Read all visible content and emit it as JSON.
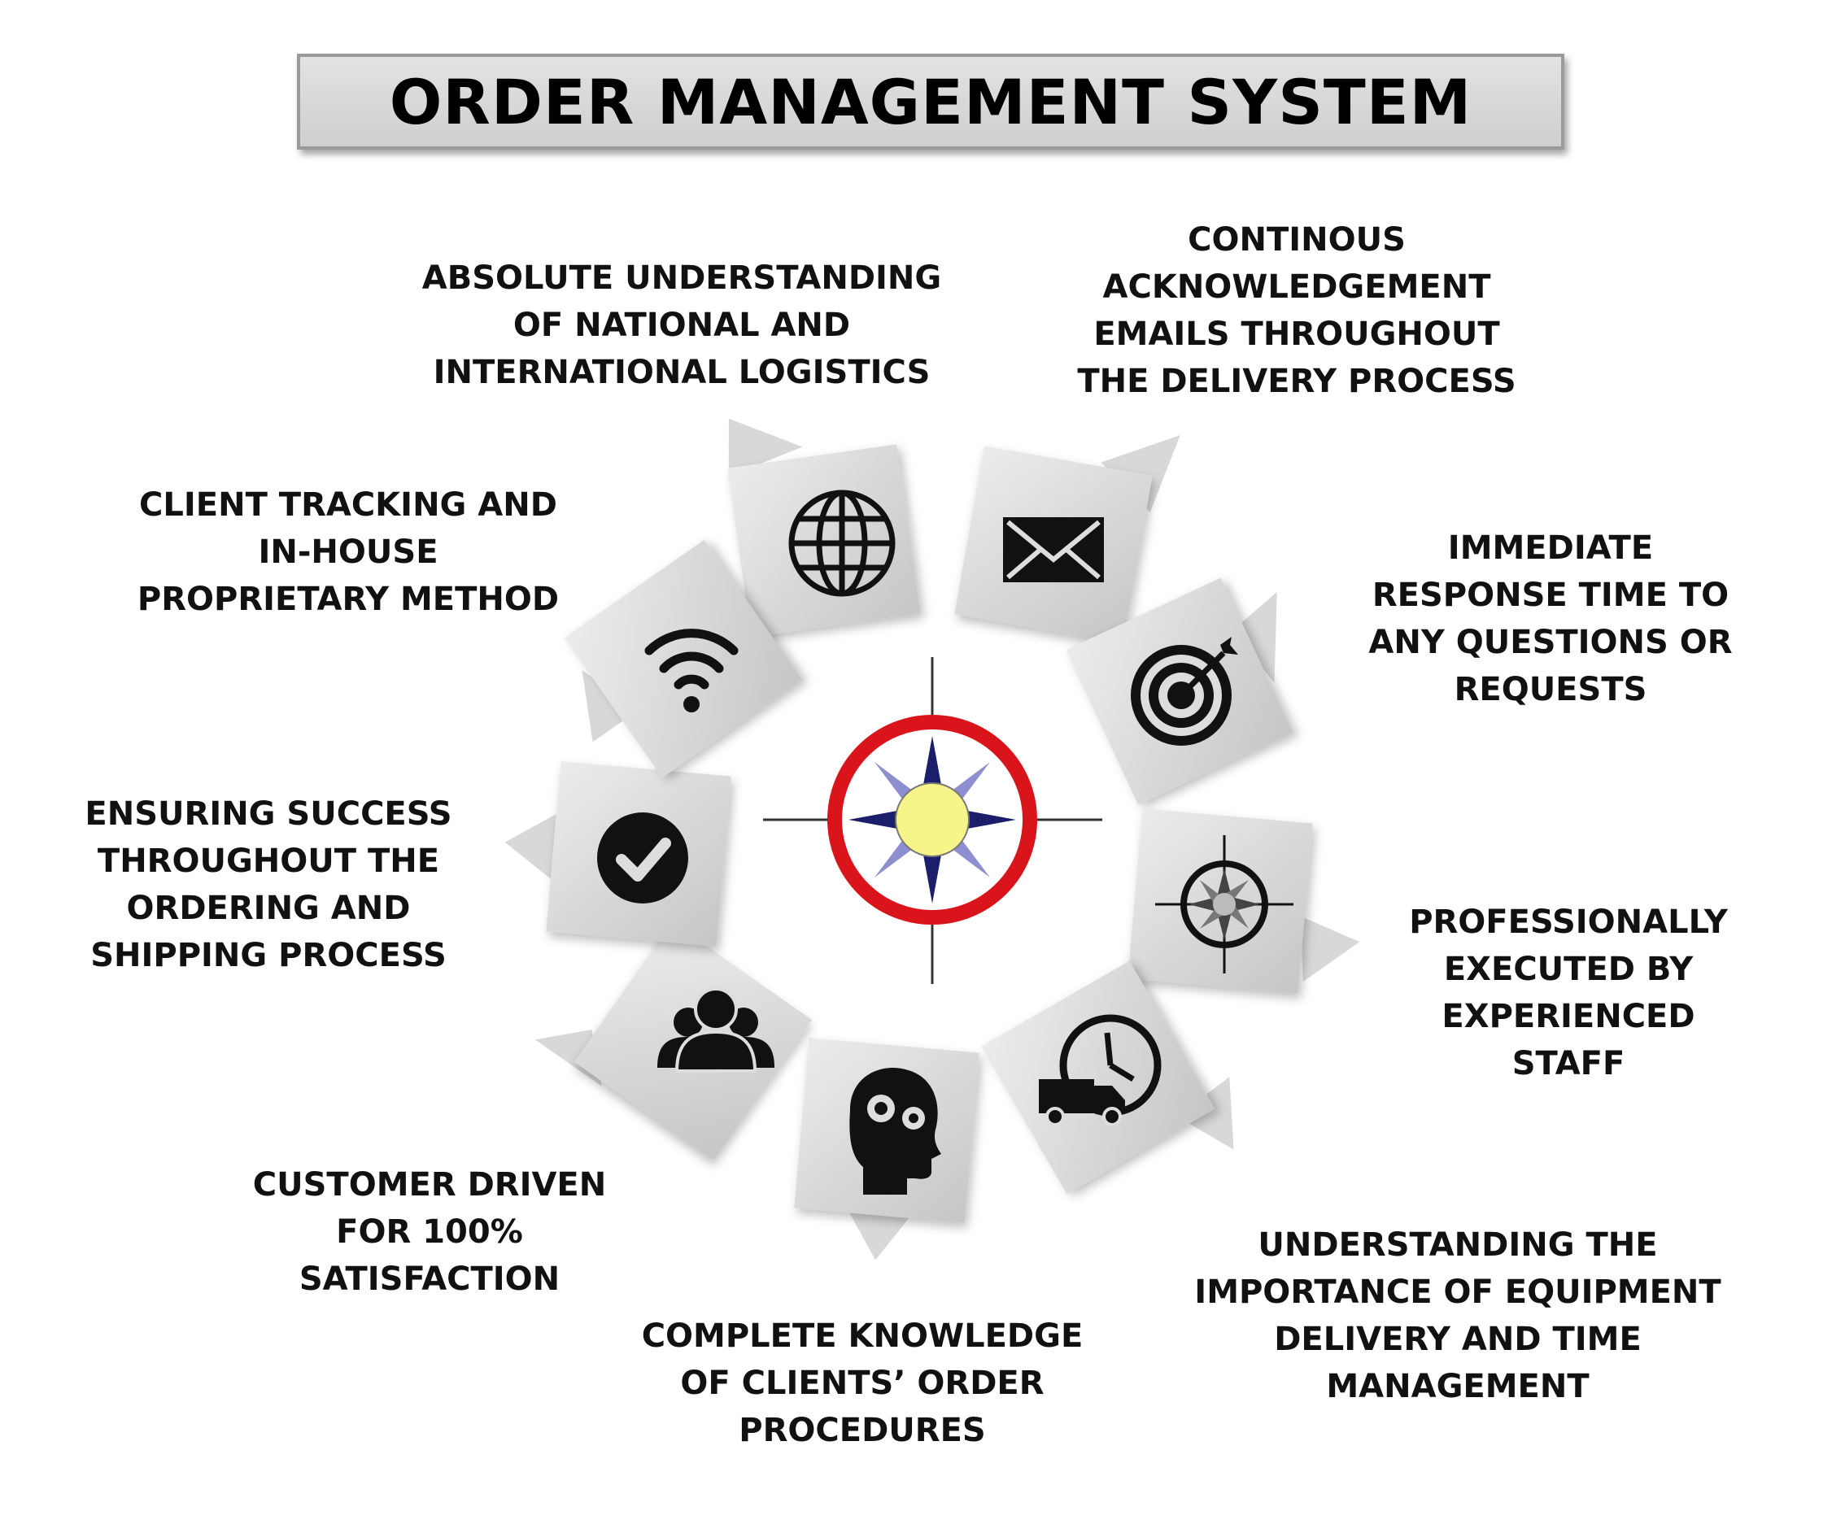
{
  "title": "ORDER MANAGEMENT SYSTEM",
  "items": [
    {
      "icon": "globe-icon",
      "lines": [
        "ABSOLUTE UNDERSTANDING",
        "OF NATIONAL AND",
        "INTERNATIONAL LOGISTICS"
      ]
    },
    {
      "icon": "envelope-icon",
      "lines": [
        "CONTINOUS",
        "ACKNOWLEDGEMENT",
        "EMAILS THROUGHOUT",
        "THE DELIVERY PROCESS"
      ]
    },
    {
      "icon": "target-icon",
      "lines": [
        "IMMEDIATE",
        "RESPONSE TIME TO",
        "ANY QUESTIONS OR",
        "REQUESTS"
      ]
    },
    {
      "icon": "compass-icon",
      "lines": [
        "PROFESSIONALLY",
        "EXECUTED BY",
        "EXPERIENCED",
        "STAFF"
      ]
    },
    {
      "icon": "clock-van-icon",
      "lines": [
        "UNDERSTANDING THE",
        "IMPORTANCE OF EQUIPMENT",
        "DELIVERY AND TIME",
        "MANAGEMENT"
      ]
    },
    {
      "icon": "head-gears-icon",
      "lines": [
        "COMPLETE KNOWLEDGE",
        "OF CLIENTS’ ORDER",
        "PROCEDURES"
      ]
    },
    {
      "icon": "people-icon",
      "lines": [
        "CUSTOMER DRIVEN",
        "FOR 100%",
        "SATISFACTION"
      ]
    },
    {
      "icon": "checkmark-icon",
      "lines": [
        "ENSURING SUCCESS",
        "THROUGHOUT THE",
        "ORDERING AND",
        "SHIPPING PROCESS"
      ]
    },
    {
      "icon": "wifi-icon",
      "lines": [
        "CLIENT  TRACKING AND",
        "IN-HOUSE",
        "PROPRIETARY METHOD"
      ]
    }
  ],
  "colors": {
    "ring": "#d9141a",
    "star_dark": "#1b1f6b",
    "star_light": "#8c8fd0",
    "sun": "#f7f48a",
    "tile": "#d4d4d4",
    "icon": "#111111"
  }
}
